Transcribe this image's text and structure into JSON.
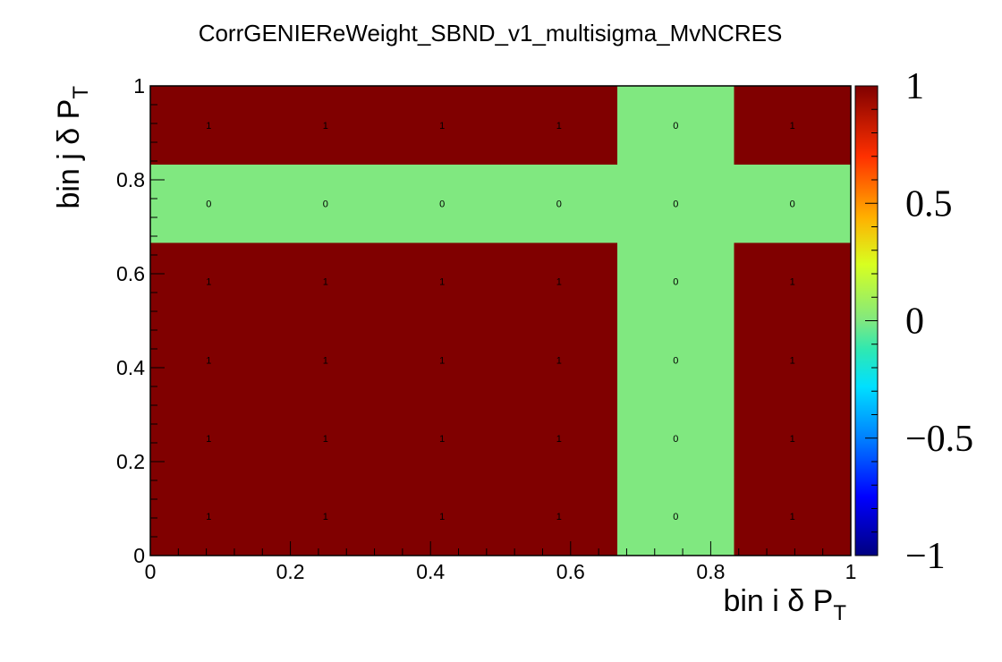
{
  "chart_data": {
    "type": "heatmap",
    "title": "CorrGENIEReWeight_SBND_v1_multisigma_MvNCRES",
    "xlabel": {
      "main": "bin i δ P",
      "sub": "T"
    },
    "ylabel": {
      "main": "bin j δ P",
      "sub": "T"
    },
    "xlim": [
      0,
      1
    ],
    "ylim": [
      0,
      1
    ],
    "zlim": [
      -1,
      1
    ],
    "x_edges": [
      0,
      0.1667,
      0.3333,
      0.5,
      0.6667,
      0.8333,
      1
    ],
    "y_edges": [
      0,
      0.1667,
      0.3333,
      0.5,
      0.6667,
      0.8333,
      1
    ],
    "x_tick_labels": [
      "0",
      "0.2",
      "0.4",
      "0.6",
      "0.8",
      "1"
    ],
    "y_tick_labels": [
      "0",
      "0.2",
      "0.4",
      "0.6",
      "0.8",
      "1"
    ],
    "z_tick_labels": [
      "−1",
      "−0.5",
      "0",
      "0.5",
      "1"
    ],
    "values": [
      [
        1,
        1,
        1,
        1,
        0,
        1
      ],
      [
        1,
        1,
        1,
        1,
        0,
        1
      ],
      [
        1,
        1,
        1,
        1,
        0,
        1
      ],
      [
        1,
        1,
        1,
        1,
        0,
        1
      ],
      [
        0,
        0,
        0,
        0,
        0,
        0
      ],
      [
        1,
        1,
        1,
        1,
        0,
        1
      ]
    ],
    "values_order": "rows from bottom (y bin 1) to top (y bin 6), columns left to right",
    "colormap": "jet-like (ROOT kRainBow)",
    "colors": {
      "max": "#800000",
      "zero": "#80e880",
      "min": "#000080"
    }
  }
}
